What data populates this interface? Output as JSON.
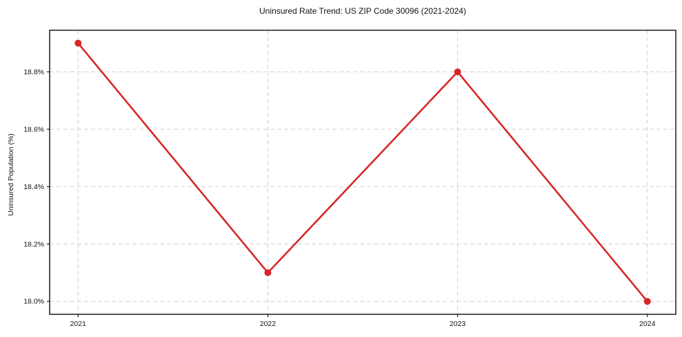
{
  "chart_data": {
    "type": "line",
    "title": "Uninsured Rate Trend: US ZIP Code 30096 (2021-2024)",
    "xlabel": "",
    "ylabel": "Uninsured Population (%)",
    "categories": [
      2021,
      2022,
      2023,
      2024
    ],
    "series": [
      {
        "name": "Uninsured rate",
        "values": [
          18.9,
          18.1,
          18.8,
          18.0
        ]
      }
    ],
    "x_ticks": {
      "values": [
        2021,
        2022,
        2023,
        2024
      ],
      "labels": [
        "2021",
        "2022",
        "2023",
        "2024"
      ]
    },
    "y_ticks": {
      "values": [
        18.0,
        18.2,
        18.4,
        18.6,
        18.8
      ],
      "labels": [
        "18.0%",
        "18.2%",
        "18.4%",
        "18.6%",
        "18.8%"
      ]
    },
    "xlim": [
      2020.85,
      2024.15
    ],
    "ylim": [
      17.955,
      18.945
    ],
    "grid": "dashed-both",
    "legend": "none",
    "colors": {
      "line": "#d62728",
      "marker": "#d62728",
      "grid": "#cccccc",
      "spine": "#1a1a1a",
      "text": "#111111",
      "background": "#ffffff"
    }
  }
}
